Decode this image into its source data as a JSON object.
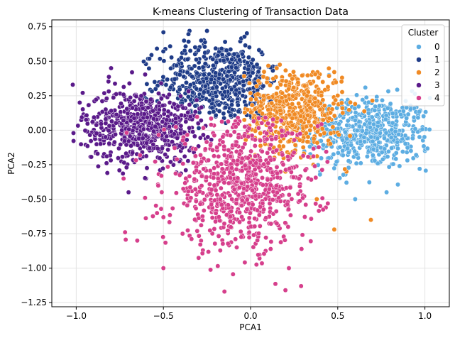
{
  "chart_data": {
    "type": "scatter",
    "title": "K-means Clustering of Transaction Data",
    "xlabel": "PCA1",
    "ylabel": "PCA2",
    "xlim": [
      -1.14,
      1.14
    ],
    "ylim": [
      -1.28,
      0.8
    ],
    "xticks": [
      -1.0,
      -0.5,
      0.0,
      0.5,
      1.0
    ],
    "xtick_labels": [
      "−1.0",
      "−0.5",
      "0.0",
      "0.5",
      "1.0"
    ],
    "yticks": [
      0.75,
      0.5,
      0.25,
      0.0,
      -0.25,
      -0.5,
      -0.75,
      -1.0,
      -1.25
    ],
    "ytick_labels": [
      "0.75",
      "0.50",
      "0.25",
      "0.00",
      "−0.25",
      "−0.50",
      "−0.75",
      "−1.00",
      "−1.25"
    ],
    "grid": true,
    "legend": {
      "title": "Cluster",
      "placement": "top-right"
    },
    "series": [
      {
        "name": "0",
        "color": "#5dade2",
        "point_count": 520,
        "center": [
          0.68,
          -0.02
        ],
        "spread": [
          0.18,
          0.13
        ],
        "bounds": {
          "x": [
            0.25,
            1.03
          ],
          "y": [
            -0.55,
            0.42
          ]
        },
        "points": [
          [
            0.55,
            0.2
          ],
          [
            0.75,
            0.05
          ],
          [
            0.9,
            -0.1
          ],
          [
            1.0,
            -0.15
          ],
          [
            0.6,
            -0.5
          ],
          [
            0.78,
            -0.45
          ],
          [
            0.4,
            -0.3
          ],
          [
            0.45,
            0.4
          ],
          [
            0.97,
            -0.28
          ],
          [
            0.55,
            -0.38
          ]
        ]
      },
      {
        "name": "1",
        "color": "#1f3c88",
        "point_count": 560,
        "center": [
          -0.18,
          0.36
        ],
        "spread": [
          0.17,
          0.14
        ],
        "bounds": {
          "x": [
            -0.62,
            0.15
          ],
          "y": [
            0.0,
            0.73
          ]
        },
        "points": [
          [
            -0.35,
            0.72
          ],
          [
            -0.25,
            0.72
          ],
          [
            -0.5,
            0.71
          ],
          [
            -0.6,
            0.48
          ],
          [
            -0.1,
            0.55
          ],
          [
            0.05,
            0.45
          ],
          [
            -0.4,
            0.2
          ],
          [
            -0.2,
            0.1
          ],
          [
            0.0,
            0.2
          ],
          [
            -0.55,
            0.35
          ]
        ]
      },
      {
        "name": "2",
        "color": "#f08a24",
        "point_count": 520,
        "center": [
          0.25,
          0.15
        ],
        "spread": [
          0.14,
          0.15
        ],
        "bounds": {
          "x": [
            -0.05,
            0.7
          ],
          "y": [
            -0.72,
            0.48
          ]
        },
        "points": [
          [
            0.15,
            0.45
          ],
          [
            0.3,
            0.4
          ],
          [
            0.05,
            0.05
          ],
          [
            0.45,
            -0.1
          ],
          [
            0.55,
            -0.3
          ],
          [
            0.38,
            -0.5
          ],
          [
            0.48,
            -0.72
          ],
          [
            0.69,
            -0.65
          ],
          [
            0.2,
            -0.3
          ],
          [
            0.1,
            0.25
          ]
        ]
      },
      {
        "name": "3",
        "color": "#5a1a8a",
        "point_count": 640,
        "center": [
          -0.62,
          0.03
        ],
        "spread": [
          0.17,
          0.13
        ],
        "bounds": {
          "x": [
            -1.02,
            -0.22
          ],
          "y": [
            -0.48,
            0.47
          ]
        },
        "points": [
          [
            -1.02,
            0.33
          ],
          [
            -0.98,
            0.2
          ],
          [
            -0.8,
            0.45
          ],
          [
            -0.68,
            0.42
          ],
          [
            -0.7,
            -0.45
          ],
          [
            -0.6,
            -0.35
          ],
          [
            -0.4,
            -0.15
          ],
          [
            -0.3,
            0.05
          ],
          [
            -0.9,
            0.0
          ],
          [
            -0.5,
            0.25
          ]
        ]
      },
      {
        "name": "4",
        "color": "#d63f8c",
        "point_count": 760,
        "center": [
          -0.05,
          -0.4
        ],
        "spread": [
          0.22,
          0.23
        ],
        "bounds": {
          "x": [
            -0.75,
            0.45
          ],
          "y": [
            -1.18,
            0.1
          ]
        },
        "points": [
          [
            -0.15,
            -1.17
          ],
          [
            0.2,
            -1.16
          ],
          [
            0.29,
            -1.13
          ],
          [
            -0.5,
            -1.0
          ],
          [
            0.22,
            -1.0
          ],
          [
            -0.72,
            -0.74
          ],
          [
            -0.65,
            -0.8
          ],
          [
            0.1,
            0.05
          ],
          [
            0.4,
            -0.55
          ],
          [
            -0.3,
            -0.25
          ]
        ]
      }
    ]
  }
}
